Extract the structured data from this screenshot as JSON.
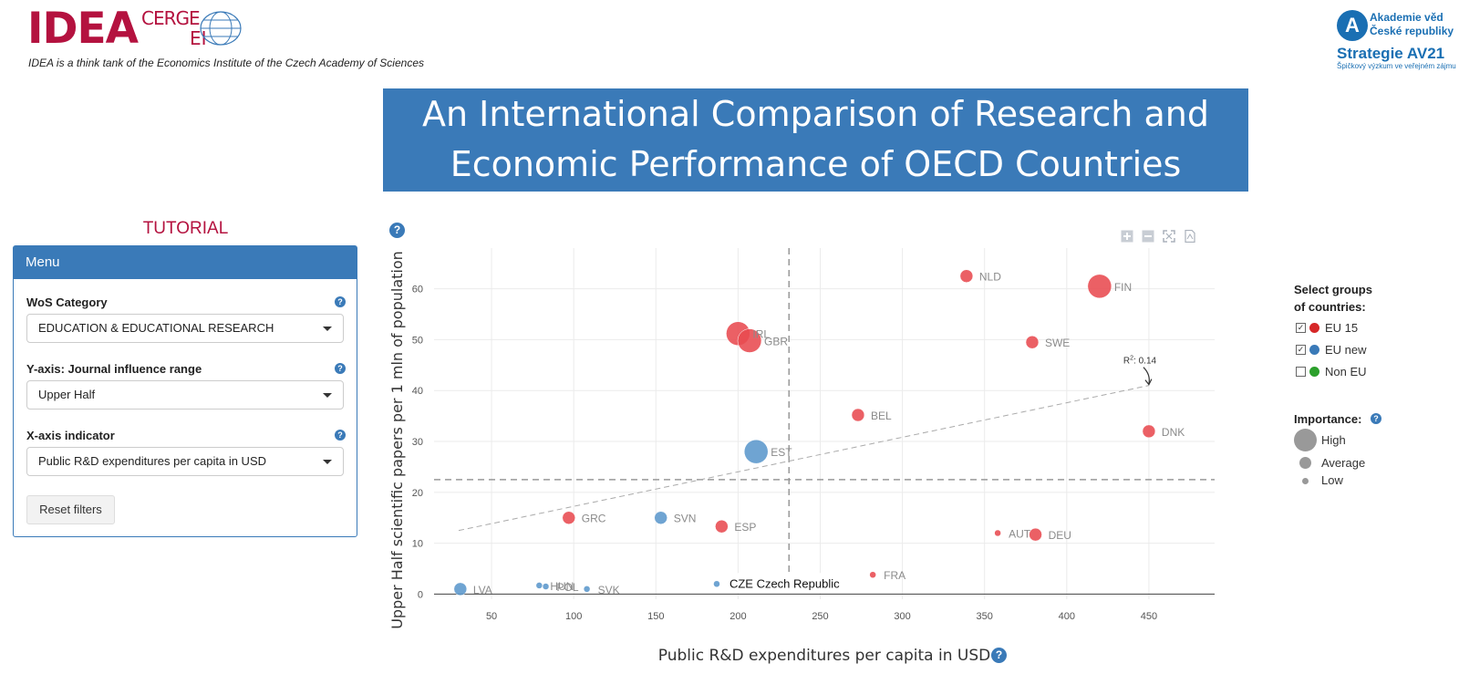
{
  "header": {
    "idea_logo": "IDEA",
    "cerge_logo": "CERGE",
    "ei_logo": "EI",
    "tagline": "IDEA is a think tank of the Economics Institute of the Czech Academy of Sciences",
    "academy_line1": "Akademie věd",
    "academy_line2": "České republiky",
    "strategy": "Strategie AV21",
    "strategy_sub": "Špičkový výzkum ve veřejném zájmu",
    "title_line1": "An International Comparison of Research and",
    "title_line2": "Economic Performance of OECD Countries"
  },
  "sidebar": {
    "tutorial": "TUTORIAL",
    "menu_title": "Menu",
    "wos_label": "WoS Category",
    "wos_value": "EDUCATION & EDUCATIONAL RESEARCH",
    "yaxis_label": "Y-axis: Journal influence range",
    "yaxis_value": "Upper Half",
    "xaxis_label": "X-axis indicator",
    "xaxis_value": "Public R&D expenditures per capita in USD",
    "reset_label": "Reset filters",
    "help_glyph": "?"
  },
  "legend": {
    "groups_title_1": "Select groups",
    "groups_title_2": "of countries:",
    "groups": [
      {
        "label": "EU 15",
        "checked": true,
        "color": "#d62728"
      },
      {
        "label": "EU new",
        "checked": true,
        "color": "#3a7ab8"
      },
      {
        "label": "Non EU",
        "checked": false,
        "color": "#2ca02c"
      }
    ],
    "importance_title": "Importance:",
    "importance": [
      {
        "label": "High"
      },
      {
        "label": "Average"
      },
      {
        "label": "Low"
      }
    ]
  },
  "colors": {
    "eu15": "#e84a50",
    "eunew": "#5b97cc",
    "accent": "#3a7ab8",
    "brand": "#b4123f"
  },
  "chart_data": {
    "type": "scatter",
    "xlabel": "Public R&D expenditures per capita in USD",
    "ylabel": "Upper Half scientific papers per 1 mln of population",
    "xlim": [
      15,
      490
    ],
    "ylim": [
      -1,
      68
    ],
    "xticks": [
      50,
      100,
      150,
      200,
      250,
      300,
      350,
      400,
      450
    ],
    "yticks": [
      0,
      10,
      20,
      30,
      40,
      50,
      60
    ],
    "grid": true,
    "mean_x": 231,
    "mean_y": 22.5,
    "trend": {
      "x1": 30,
      "y1": 12.5,
      "x2": 450,
      "y2": 41,
      "r2_label": "R",
      "r2_sup": "2",
      "r2_value": ": 0.14"
    },
    "points": [
      {
        "code": "NLD",
        "x": 339,
        "y": 62.5,
        "group": "eu15",
        "importance": "average"
      },
      {
        "code": "FIN",
        "x": 420,
        "y": 60.5,
        "group": "eu15",
        "importance": "high"
      },
      {
        "code": "IRL",
        "x": 200,
        "y": 51.2,
        "group": "eu15",
        "importance": "high"
      },
      {
        "code": "GBR",
        "x": 207,
        "y": 49.8,
        "group": "eu15",
        "importance": "high"
      },
      {
        "code": "SWE",
        "x": 379,
        "y": 49.5,
        "group": "eu15",
        "importance": "average"
      },
      {
        "code": "BEL",
        "x": 273,
        "y": 35.2,
        "group": "eu15",
        "importance": "average"
      },
      {
        "code": "DNK",
        "x": 450,
        "y": 32.0,
        "group": "eu15",
        "importance": "average"
      },
      {
        "code": "EST",
        "x": 211,
        "y": 28.0,
        "group": "eunew",
        "importance": "high"
      },
      {
        "code": "GRC",
        "x": 97,
        "y": 15.0,
        "group": "eu15",
        "importance": "average"
      },
      {
        "code": "SVN",
        "x": 153,
        "y": 15.0,
        "group": "eunew",
        "importance": "average"
      },
      {
        "code": "ESP",
        "x": 190,
        "y": 13.3,
        "group": "eu15",
        "importance": "average"
      },
      {
        "code": "AUT",
        "x": 358,
        "y": 12.0,
        "group": "eu15",
        "importance": "low"
      },
      {
        "code": "DEU",
        "x": 381,
        "y": 11.7,
        "group": "eu15",
        "importance": "average"
      },
      {
        "code": "FRA",
        "x": 282,
        "y": 3.8,
        "group": "eu15",
        "importance": "low"
      },
      {
        "code": "LVA",
        "x": 31,
        "y": 1.0,
        "group": "eunew",
        "importance": "average"
      },
      {
        "code": "HUN",
        "x": 79,
        "y": 1.7,
        "group": "eunew",
        "importance": "low"
      },
      {
        "code": "POL",
        "x": 83,
        "y": 1.5,
        "group": "eunew",
        "importance": "low"
      },
      {
        "code": "SVK",
        "x": 108,
        "y": 1.0,
        "group": "eunew",
        "importance": "low"
      },
      {
        "code": "CZE",
        "x": 187,
        "y": 2.0,
        "group": "eunew",
        "importance": "low",
        "tooltip": "CZE Czech Republic"
      }
    ]
  }
}
